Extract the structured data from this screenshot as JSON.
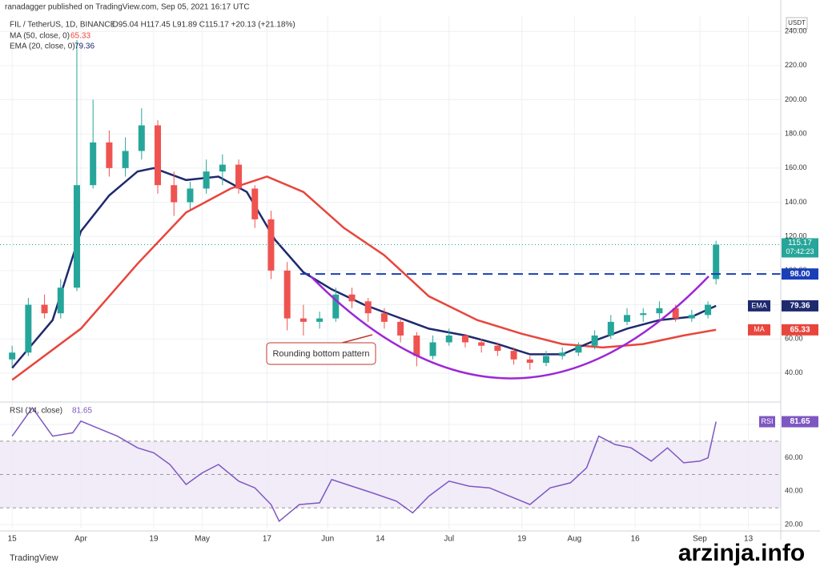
{
  "header": {
    "published": "ranadagger published on TradingView.com, Sep 05, 2021 16:17 UTC"
  },
  "footer": {
    "logo": "TradingView",
    "watermark": "arzinja.info"
  },
  "chart_data": [
    {
      "type": "candlestick",
      "title": "FIL / TetherUS, 1D, BINANCE",
      "summary": "O95.04 H117.45 L91.89 C115.17 +20.13 (+21.18%)",
      "currency": "USDT",
      "countdown": "07:42:23",
      "annotation": "Rounding bottom pattern",
      "up_color": "#26a69a",
      "down_color": "#ef5350",
      "x": [
        "2021-03-15",
        "2021-03-19",
        "2021-03-23",
        "2021-03-27",
        "2021-03-31",
        "2021-04-04",
        "2021-04-08",
        "2021-04-12",
        "2021-04-16",
        "2021-04-20",
        "2021-04-24",
        "2021-04-28",
        "2021-05-02",
        "2021-05-06",
        "2021-05-10",
        "2021-05-14",
        "2021-05-18",
        "2021-05-22",
        "2021-05-26",
        "2021-05-30",
        "2021-06-03",
        "2021-06-07",
        "2021-06-11",
        "2021-06-15",
        "2021-06-19",
        "2021-06-23",
        "2021-06-27",
        "2021-07-01",
        "2021-07-05",
        "2021-07-09",
        "2021-07-13",
        "2021-07-17",
        "2021-07-21",
        "2021-07-25",
        "2021-07-29",
        "2021-08-02",
        "2021-08-06",
        "2021-08-10",
        "2021-08-14",
        "2021-08-18",
        "2021-08-22",
        "2021-08-26",
        "2021-08-30",
        "2021-09-03",
        "2021-09-05"
      ],
      "open": [
        48,
        52,
        80,
        75,
        90,
        150,
        175,
        160,
        170,
        185,
        150,
        140,
        148,
        158,
        162,
        148,
        130,
        100,
        72,
        70,
        72,
        86,
        82,
        75,
        70,
        62,
        50,
        58,
        62,
        58,
        56,
        53,
        48,
        46,
        50,
        52,
        56,
        62,
        70,
        74,
        75,
        78,
        72,
        74,
        95.04
      ],
      "high": [
        56,
        84,
        86,
        95,
        235,
        200,
        182,
        178,
        195,
        188,
        158,
        152,
        165,
        168,
        165,
        150,
        135,
        105,
        80,
        76,
        90,
        90,
        84,
        78,
        72,
        64,
        62,
        66,
        63,
        60,
        58,
        55,
        50,
        53,
        55,
        58,
        65,
        74,
        78,
        78,
        82,
        80,
        77,
        82,
        117.45
      ],
      "low": [
        44,
        50,
        72,
        72,
        88,
        148,
        155,
        155,
        165,
        145,
        132,
        136,
        145,
        150,
        145,
        125,
        95,
        65,
        62,
        66,
        70,
        78,
        70,
        66,
        58,
        44,
        48,
        56,
        55,
        52,
        50,
        45,
        42,
        44,
        48,
        50,
        54,
        60,
        68,
        70,
        72,
        70,
        70,
        72,
        91.89
      ],
      "close": [
        52,
        80,
        75,
        90,
        150,
        175,
        160,
        170,
        185,
        150,
        140,
        148,
        158,
        162,
        148,
        130,
        100,
        72,
        70,
        72,
        86,
        82,
        75,
        70,
        62,
        50,
        58,
        62,
        58,
        56,
        53,
        48,
        46,
        50,
        52,
        56,
        62,
        70,
        74,
        75,
        78,
        72,
        74,
        80,
        115.17
      ],
      "lines": [
        {
          "name": "MA (50, close, 0)",
          "tag": "MA",
          "color": "#e8453c",
          "x": [
            "2021-03-15",
            "2021-04-01",
            "2021-04-15",
            "2021-04-27",
            "2021-05-08",
            "2021-05-17",
            "2021-05-26",
            "2021-06-05",
            "2021-06-15",
            "2021-06-26",
            "2021-07-08",
            "2021-07-19",
            "2021-07-29",
            "2021-08-08",
            "2021-08-18",
            "2021-08-28",
            "2021-09-05"
          ],
          "values": [
            36,
            66,
            104,
            134,
            148,
            155,
            146,
            125,
            109,
            85,
            71,
            63,
            57,
            55,
            57,
            62,
            65.33
          ]
        },
        {
          "name": "EMA (20, close, 0)",
          "tag": "EMA",
          "color": "#1e2a6e",
          "x": [
            "2021-03-15",
            "2021-03-25",
            "2021-04-01",
            "2021-04-08",
            "2021-04-15",
            "2021-04-19",
            "2021-04-27",
            "2021-05-05",
            "2021-05-12",
            "2021-05-19",
            "2021-05-26",
            "2021-06-02",
            "2021-06-10",
            "2021-06-18",
            "2021-06-26",
            "2021-07-05",
            "2021-07-13",
            "2021-07-21",
            "2021-07-29",
            "2021-08-06",
            "2021-08-14",
            "2021-08-22",
            "2021-08-30",
            "2021-09-05"
          ],
          "values": [
            43,
            71,
            123,
            144,
            158,
            160,
            153,
            155,
            146,
            118,
            99,
            89,
            80,
            73,
            66,
            62,
            57,
            51,
            51,
            59,
            66,
            71,
            73,
            79.36
          ]
        }
      ],
      "levels": [
        {
          "value": 98,
          "label": "98.00",
          "color": "#1a3fb8"
        }
      ],
      "xlim": [
        "2021-03-12",
        "2021-09-21"
      ],
      "xticks": [
        {
          "value": "2021-03-15",
          "label": "15"
        },
        {
          "value": "2021-04-01",
          "label": "Apr"
        },
        {
          "value": "2021-04-19",
          "label": "19"
        },
        {
          "value": "2021-05-01",
          "label": "May"
        },
        {
          "value": "2021-05-17",
          "label": "17"
        },
        {
          "value": "2021-06-01",
          "label": "Jun"
        },
        {
          "value": "2021-06-14",
          "label": "14"
        },
        {
          "value": "2021-07-01",
          "label": "Jul"
        },
        {
          "value": "2021-07-19",
          "label": "19"
        },
        {
          "value": "2021-08-01",
          "label": "Aug"
        },
        {
          "value": "2021-08-16",
          "label": "16"
        },
        {
          "value": "2021-09-01",
          "label": "Sep"
        },
        {
          "value": "2021-09-13",
          "label": "13"
        }
      ],
      "ylim": [
        24,
        249
      ],
      "yticks": [
        {
          "value": 40,
          "label": "40.00"
        },
        {
          "value": 60,
          "label": "60.00"
        },
        {
          "value": 80,
          "label": "80.00"
        },
        {
          "value": 100,
          "label": "100.00"
        },
        {
          "value": 120,
          "label": "120.00"
        },
        {
          "value": 140,
          "label": "140.00"
        },
        {
          "value": 160,
          "label": "160.00"
        },
        {
          "value": 180,
          "label": "180.00"
        },
        {
          "value": 200,
          "label": "200.00"
        },
        {
          "value": 220,
          "label": "220.00"
        },
        {
          "value": 240,
          "label": "240.00"
        }
      ],
      "grid": true
    },
    {
      "type": "line",
      "title": "RSI (14, close)",
      "x": [
        "2021-03-15",
        "2021-03-20",
        "2021-03-25",
        "2021-03-30",
        "2021-04-01",
        "2021-04-05",
        "2021-04-10",
        "2021-04-15",
        "2021-04-19",
        "2021-04-23",
        "2021-04-27",
        "2021-05-01",
        "2021-05-05",
        "2021-05-10",
        "2021-05-14",
        "2021-05-18",
        "2021-05-20",
        "2021-05-25",
        "2021-05-30",
        "2021-06-02",
        "2021-06-07",
        "2021-06-12",
        "2021-06-18",
        "2021-06-22",
        "2021-06-26",
        "2021-07-01",
        "2021-07-06",
        "2021-07-11",
        "2021-07-16",
        "2021-07-21",
        "2021-07-26",
        "2021-07-31",
        "2021-08-04",
        "2021-08-07",
        "2021-08-11",
        "2021-08-15",
        "2021-08-20",
        "2021-08-24",
        "2021-08-28",
        "2021-09-01",
        "2021-09-03",
        "2021-09-05"
      ],
      "series": [
        {
          "name": "RSI",
          "color": "#7e57c2",
          "values": [
            73,
            90,
            73,
            75,
            82,
            78,
            73,
            66,
            63,
            56,
            44,
            51,
            56,
            46,
            42,
            32,
            22,
            32,
            33,
            47,
            43,
            39,
            34,
            27,
            37,
            46,
            43,
            42,
            37,
            32,
            42,
            45,
            54,
            73,
            68,
            66,
            58,
            66,
            57,
            58,
            60,
            81.65
          ]
        }
      ],
      "band": [
        30,
        70
      ],
      "midline": 50,
      "ylim": [
        17.6,
        92
      ],
      "yticks": [
        {
          "value": 20,
          "label": "20.00"
        },
        {
          "value": 40,
          "label": "40.00"
        },
        {
          "value": 60,
          "label": "60.00"
        },
        {
          "value": 80,
          "label": "80.00"
        }
      ],
      "grid": true
    }
  ]
}
